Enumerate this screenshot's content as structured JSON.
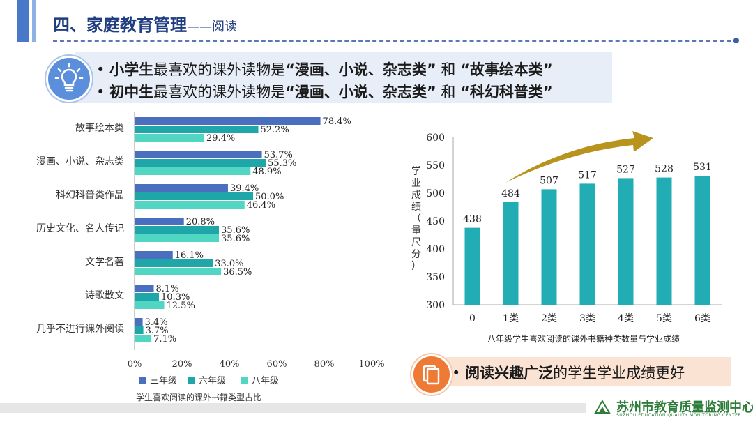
{
  "header": {
    "title": "四、家庭教育管理",
    "subtitle": "——阅读"
  },
  "callout": {
    "line1": {
      "bullet": "•",
      "group": "小学生",
      "mid": "最喜欢的课外读物是",
      "q1": "“漫画、小说、杂志类”",
      "and": "和",
      "q2": "“故事绘本类”"
    },
    "line2": {
      "bullet": "•",
      "group": "初中生",
      "mid": "最喜欢的课外读物是",
      "q1": "“漫画、小说、杂志类”",
      "and": "和",
      "q2": "“科幻科普类”"
    }
  },
  "conclusion": {
    "bullet": "•",
    "strong": "阅读兴趣广泛",
    "rest": "的学生学业成绩更好"
  },
  "footer": {
    "org": "苏州市教育质量监测中心",
    "org_en": "SUZHOU EDUCATION QUALITY MONITORING CENTER"
  },
  "colors": {
    "grade3": "#4a6fbf",
    "grade6": "#1fa6a8",
    "grade8": "#52d6c4",
    "column": "#22adb4",
    "arrow": "#b8941f",
    "title": "#1f3d80"
  },
  "chart_data": [
    {
      "type": "bar",
      "orientation": "horizontal",
      "title": "学生喜欢阅读的课外书籍类型占比",
      "categories": [
        "故事绘本类",
        "漫画、小说、杂志类",
        "科幻科普类作品",
        "历史文化、名人传记",
        "文学名著",
        "诗歌散文",
        "几乎不进行课外阅读"
      ],
      "series": [
        {
          "name": "三年级",
          "values": [
            78.4,
            53.7,
            39.4,
            20.8,
            16.1,
            8.1,
            3.4
          ]
        },
        {
          "name": "六年级",
          "values": [
            52.2,
            55.3,
            50.0,
            35.6,
            33.0,
            10.3,
            3.7
          ]
        },
        {
          "name": "八年级",
          "values": [
            29.4,
            48.9,
            46.4,
            35.6,
            36.5,
            12.5,
            7.1
          ]
        }
      ],
      "value_labels": [
        [
          "78.4%",
          "53.7%",
          "39.4%",
          "20.8%",
          "16.1%",
          "8.1%",
          "3.4%"
        ],
        [
          "52.2%",
          "55.3%",
          "50.0%",
          "35.6%",
          "33.0%",
          "10.3%",
          "3.7%"
        ],
        [
          "29.4%",
          "48.9%",
          "46.4%",
          "35.6%",
          "36.5%",
          "12.5%",
          "7.1%"
        ]
      ],
      "xlim": [
        0,
        100
      ],
      "xticks": [
        "0%",
        "20%",
        "40%",
        "60%",
        "80%",
        "100%"
      ],
      "legend": "bottom"
    },
    {
      "type": "bar",
      "orientation": "vertical",
      "title": "八年级学生喜欢阅读的课外书籍种类数量与学业成绩",
      "categories": [
        "0",
        "1类",
        "2类",
        "3类",
        "4类",
        "5类",
        "6类"
      ],
      "values": [
        438,
        484,
        507,
        517,
        527,
        528,
        531
      ],
      "value_labels": [
        "438",
        "484",
        "507",
        "517",
        "527",
        "528",
        "531"
      ],
      "ylabel": "学业成绩（量尺分）",
      "ylim": [
        300,
        600
      ],
      "yticks": [
        "300",
        "350",
        "400",
        "450",
        "500",
        "550",
        "600"
      ],
      "annotation": "upward trend arrow"
    }
  ]
}
